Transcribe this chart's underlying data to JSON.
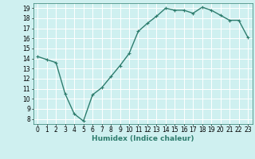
{
  "x": [
    0,
    1,
    2,
    3,
    4,
    5,
    6,
    7,
    8,
    9,
    10,
    11,
    12,
    13,
    14,
    15,
    16,
    17,
    18,
    19,
    20,
    21,
    22,
    23
  ],
  "y": [
    14.2,
    13.9,
    13.6,
    10.5,
    8.5,
    7.8,
    10.4,
    11.1,
    12.2,
    13.3,
    14.5,
    16.7,
    17.5,
    18.2,
    19.0,
    18.8,
    18.8,
    18.5,
    19.1,
    18.8,
    18.3,
    17.8,
    17.8,
    16.1
  ],
  "line_color": "#2e7d6e",
  "marker": "+",
  "marker_size": 3,
  "bg_color": "#cff0f0",
  "grid_color": "#ffffff",
  "xlabel": "Humidex (Indice chaleur)",
  "ylim": [
    7.5,
    19.5
  ],
  "xlim": [
    -0.5,
    23.5
  ],
  "yticks": [
    8,
    9,
    10,
    11,
    12,
    13,
    14,
    15,
    16,
    17,
    18,
    19
  ],
  "xticks": [
    0,
    1,
    2,
    3,
    4,
    5,
    6,
    7,
    8,
    9,
    10,
    11,
    12,
    13,
    14,
    15,
    16,
    17,
    18,
    19,
    20,
    21,
    22,
    23
  ],
  "tick_fontsize": 5.5,
  "xlabel_fontsize": 6.5,
  "linewidth": 1.0
}
